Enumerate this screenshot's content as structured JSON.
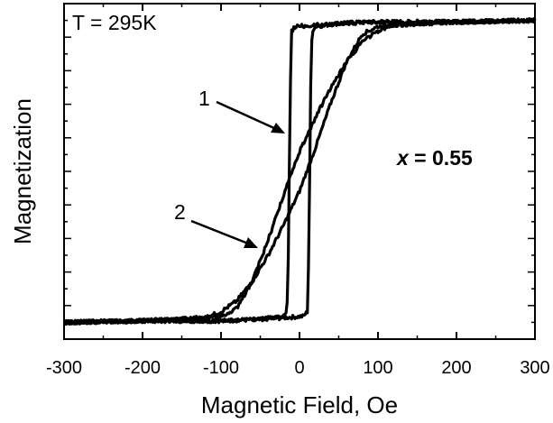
{
  "chart_data": {
    "type": "line",
    "xlabel": "Magnetic Field, Oe",
    "ylabel": "Magnetization",
    "xlim": [
      -300,
      300
    ],
    "ylim": [
      -1.1,
      1.1
    ],
    "x_ticks": [
      -300,
      -200,
      -100,
      0,
      100,
      200,
      300
    ],
    "y_tick_labels": "none",
    "grid": false,
    "annotations": {
      "temperature": "T = 295K",
      "composition_var": "x",
      "composition_rest": " = 0.55",
      "curve_1_label": "1",
      "curve_2_label": "2"
    },
    "series": [
      {
        "id": "1",
        "description_visible": "square hysteresis loop",
        "branches": [
          {
            "x": [
              -300,
              -200,
              -100,
              -50,
              -20,
              5,
              10,
              12,
              14,
              16,
              20,
              50,
              100,
              200,
              300
            ],
            "y": [
              -0.99,
              -0.98,
              -0.98,
              -0.97,
              -0.96,
              -0.95,
              -0.92,
              -0.5,
              0.5,
              0.92,
              0.95,
              0.97,
              0.98,
              0.98,
              0.99
            ]
          },
          {
            "x": [
              300,
              200,
              100,
              50,
              20,
              -5,
              -10,
              -12,
              -14,
              -16,
              -20,
              -50,
              -100,
              -200,
              -300
            ],
            "y": [
              0.99,
              0.98,
              0.98,
              0.97,
              0.96,
              0.95,
              0.92,
              0.5,
              -0.5,
              -0.92,
              -0.95,
              -0.97,
              -0.98,
              -0.98,
              -0.99
            ]
          }
        ]
      },
      {
        "id": "2",
        "description_visible": "sheared hysteresis loop",
        "branches": [
          {
            "x": [
              -300,
              -200,
              -120,
              -100,
              -80,
              -60,
              -40,
              -20,
              0,
              20,
              40,
              60,
              80,
              100,
              150,
              200,
              300
            ],
            "y": [
              -0.99,
              -0.98,
              -0.96,
              -0.92,
              -0.85,
              -0.72,
              -0.55,
              -0.35,
              -0.13,
              0.15,
              0.45,
              0.72,
              0.9,
              0.95,
              0.97,
              0.98,
              0.99
            ]
          },
          {
            "x": [
              300,
              200,
              120,
              100,
              80,
              60,
              40,
              20,
              0,
              -20,
              -40,
              -60,
              -80,
              -100,
              -150,
              -200,
              -300
            ],
            "y": [
              0.99,
              0.98,
              0.96,
              0.92,
              0.85,
              0.72,
              0.55,
              0.35,
              0.13,
              -0.15,
              -0.45,
              -0.72,
              -0.9,
              -0.95,
              -0.97,
              -0.98,
              -0.99
            ]
          }
        ]
      }
    ]
  }
}
